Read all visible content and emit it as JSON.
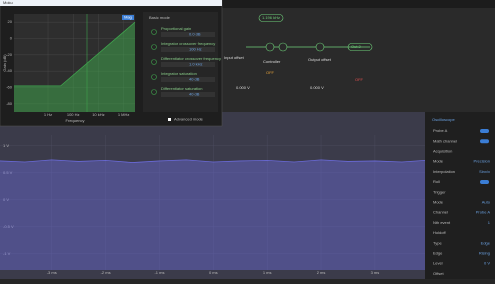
{
  "window": {
    "title": "Moku"
  },
  "bode": {
    "type": "line",
    "xlabel": "Frequency",
    "ylabel": "Gain (dB)",
    "xlog": true,
    "xlim": [
      0.002,
      8000000
    ],
    "ylim": [
      -90,
      30
    ],
    "xticks": [
      {
        "value": 1,
        "label": "1 Hz"
      },
      {
        "value": 100,
        "label": "100 Hz"
      },
      {
        "value": 10000,
        "label": "10 kHz"
      },
      {
        "value": 1000000,
        "label": "1 MHz"
      }
    ],
    "yticks": [
      20,
      0,
      -20,
      -40,
      -60,
      -80
    ],
    "tag": "Mag",
    "series": [
      {
        "color": "#3fa34d",
        "x": [
          0.002,
          10,
          8000000
        ],
        "values": [
          -58,
          -58,
          20
        ]
      }
    ]
  },
  "settings": {
    "title": "Basic mode",
    "items": [
      {
        "label": "Proportional gain",
        "value": "0.0 dB"
      },
      {
        "label": "Integrator crossover frequency",
        "value": "100 Hz"
      },
      {
        "label": "Differentiator crossover frequency",
        "value": "1.0 kHz"
      },
      {
        "label": "Integrator saturation",
        "value": "40 dB"
      },
      {
        "label": "Differentiator saturation",
        "value": "40 dB"
      }
    ],
    "advanced": "Advanced mode"
  },
  "diagram": {
    "labels": [
      "Input offset",
      "Controller",
      "Output offset",
      "Out 2",
      "0.000 V",
      "0.000 V",
      "OFF",
      "OFF",
      "1.196 kHz"
    ]
  },
  "scope": {
    "type": "line",
    "xlim": [
      -3.96,
      3.93
    ],
    "ylim": [
      -1.3,
      1.2
    ],
    "xticks": [
      {
        "value": -3,
        "label": "-3 ms"
      },
      {
        "value": -2,
        "label": "-2 ms"
      },
      {
        "value": -1,
        "label": "-1 ms"
      },
      {
        "value": 0,
        "label": "0 ms"
      },
      {
        "value": 1,
        "label": "1 ms"
      },
      {
        "value": 2,
        "label": "2 ms"
      },
      {
        "value": 3,
        "label": "3 ms"
      }
    ],
    "yticks": [
      {
        "value": 1,
        "label": "1 V"
      },
      {
        "value": 0.5,
        "label": "0.5 V"
      },
      {
        "value": 0,
        "label": "0 V"
      },
      {
        "value": -0.5,
        "label": "-0.5 V"
      },
      {
        "value": -1,
        "label": "-1 V"
      }
    ],
    "series": [
      {
        "name": "Probe A",
        "color": "#6a6ad8",
        "x": [
          -3.96,
          -3.5,
          -3,
          -2.5,
          -2,
          -1.5,
          -1,
          -0.5,
          0,
          0.5,
          1,
          1.5,
          2,
          2.5,
          3,
          3.5,
          3.93
        ],
        "values": [
          0.72,
          0.7,
          0.74,
          0.71,
          0.73,
          0.69,
          0.72,
          0.74,
          0.7,
          0.72,
          0.73,
          0.7,
          0.74,
          0.71,
          0.72,
          0.7,
          0.73
        ]
      }
    ]
  },
  "panel": {
    "title": "Oscilloscope",
    "rows": [
      {
        "label": "Probe A"
      },
      {
        "label": "Math channel"
      },
      {
        "label": "Acquisition"
      },
      {
        "label": "Mode",
        "value": "Precision"
      },
      {
        "label": "Interpolation",
        "value": "Sinx/x"
      },
      {
        "label": "Roll"
      },
      {
        "label": "Trigger"
      },
      {
        "label": "Mode",
        "value": "Auto"
      },
      {
        "label": "Channel",
        "value": "Probe A"
      },
      {
        "label": "Nth event",
        "value": "1"
      },
      {
        "label": "Holdoff"
      },
      {
        "label": "Type",
        "value": "Edge"
      },
      {
        "label": "Edge",
        "value": "Rising"
      },
      {
        "label": "Level",
        "value": "0 V"
      },
      {
        "label": "Offset"
      }
    ]
  }
}
